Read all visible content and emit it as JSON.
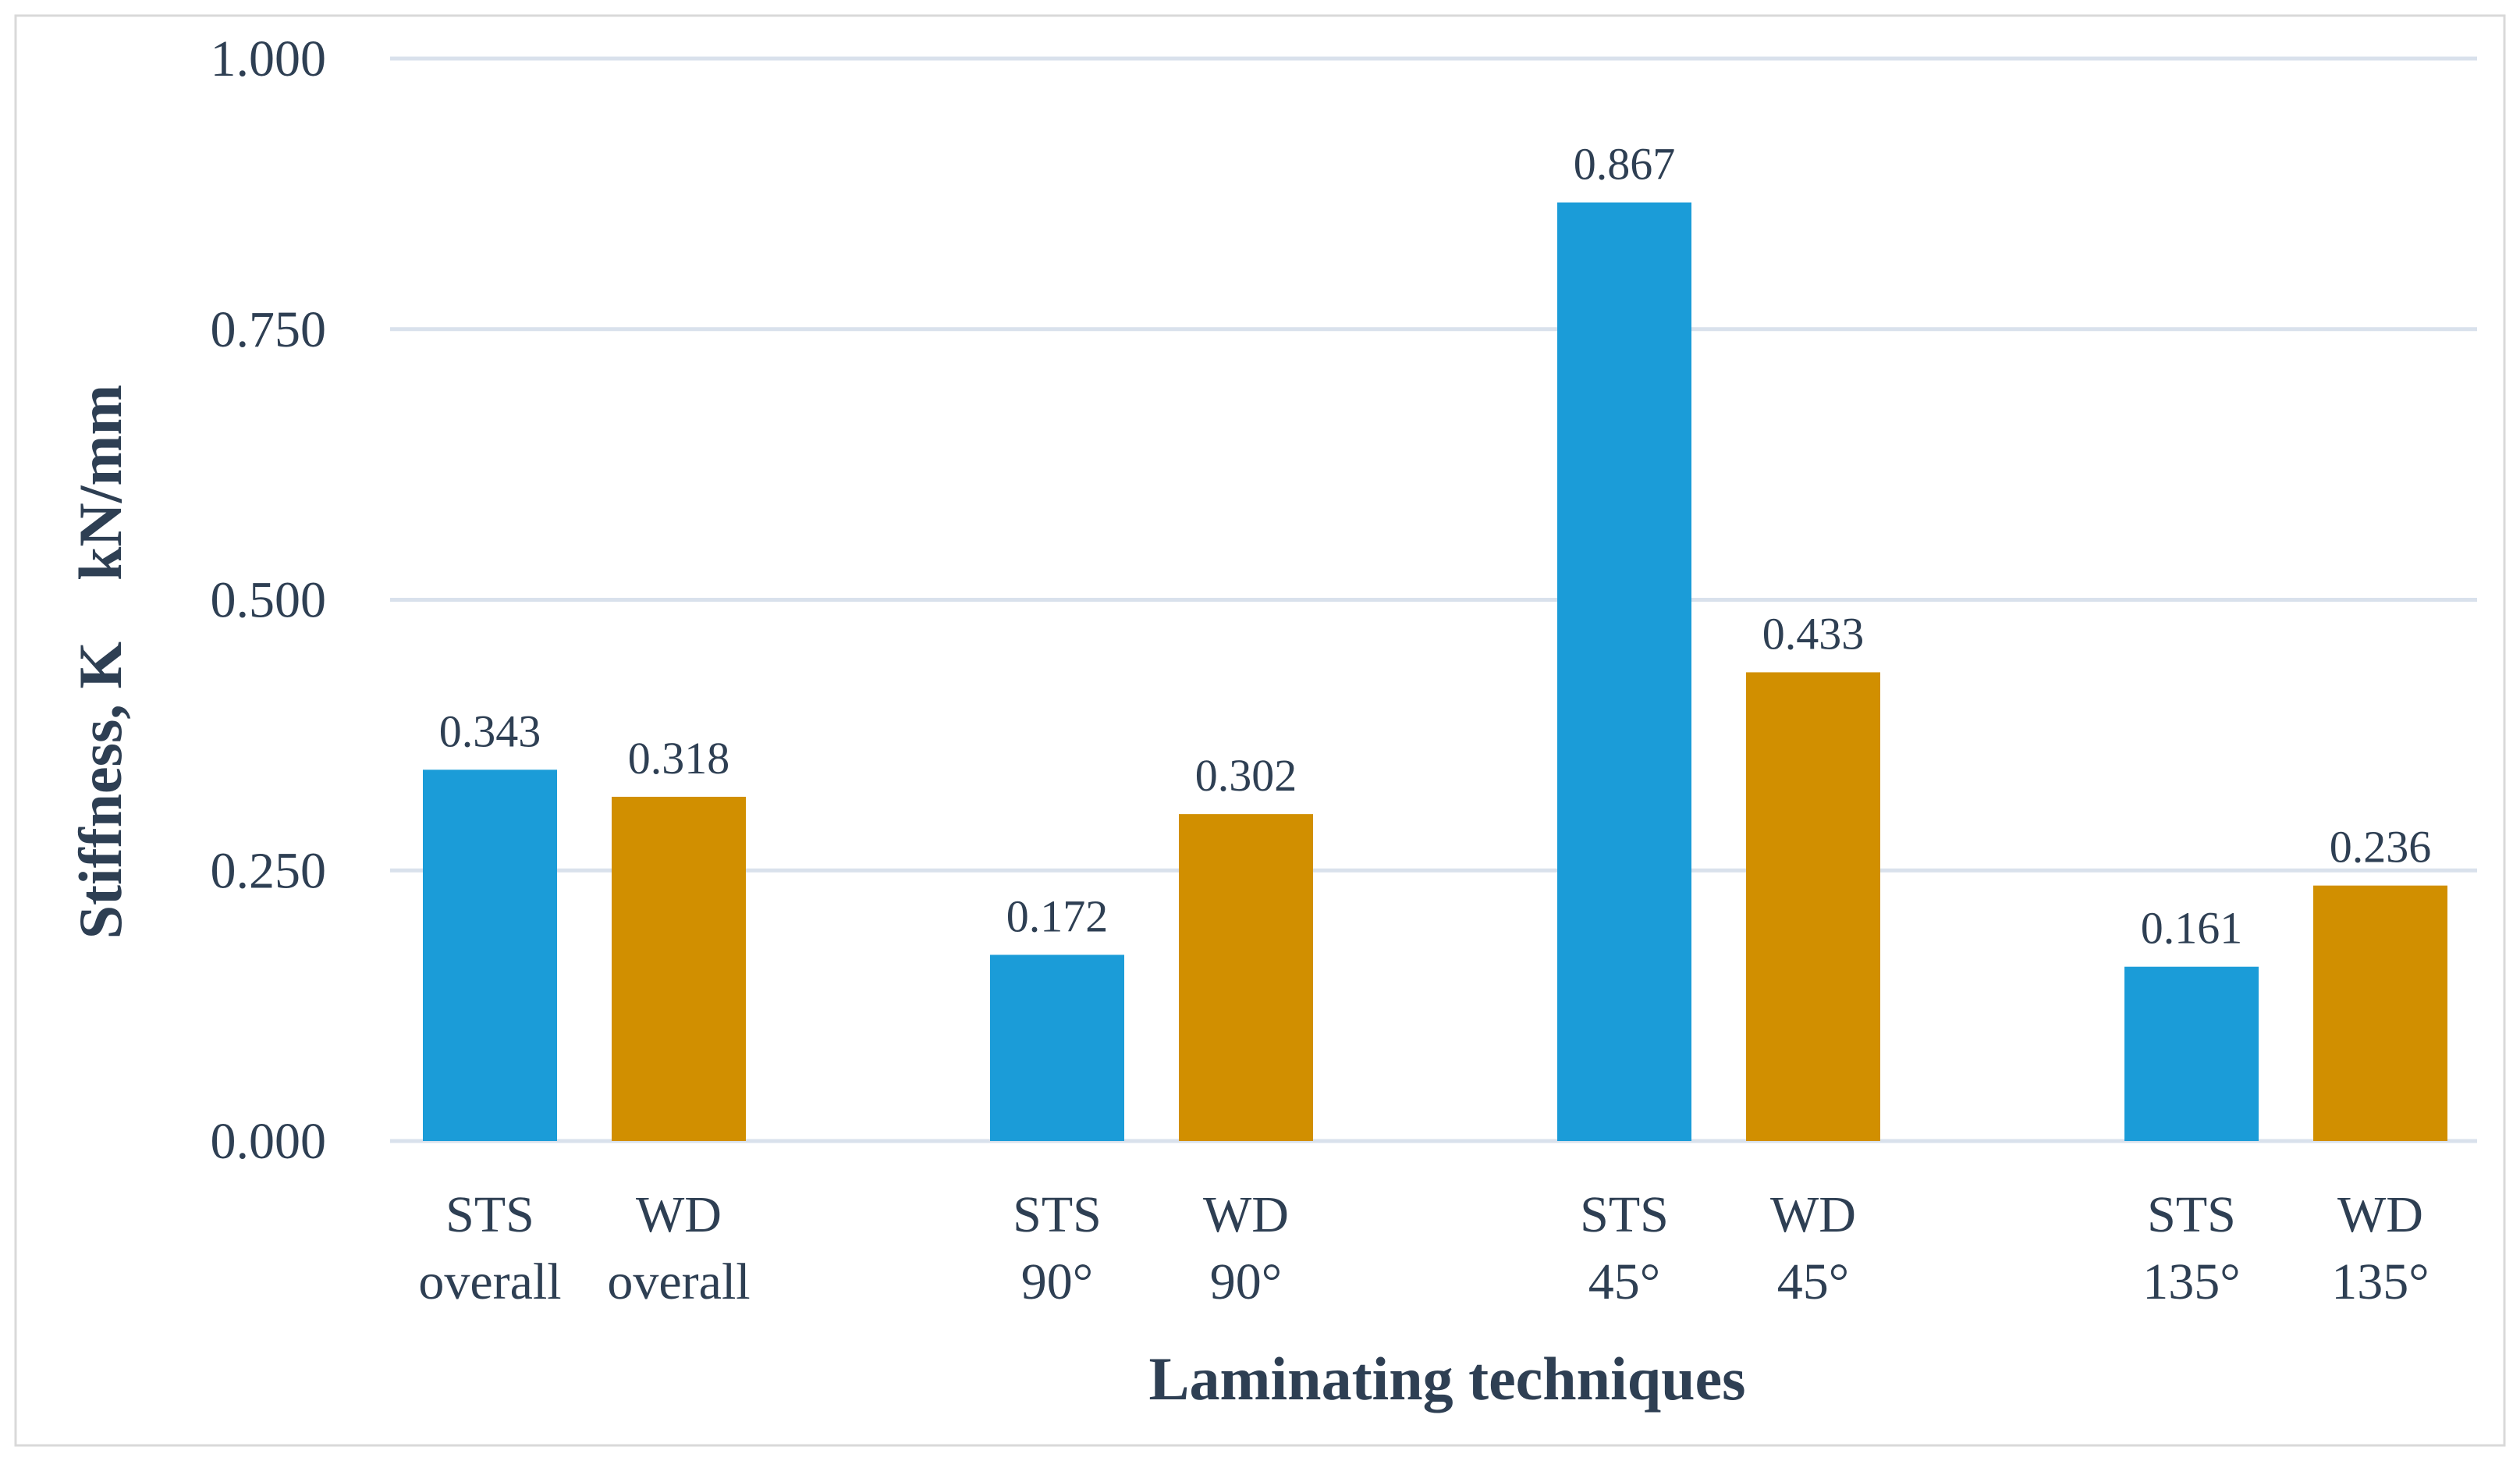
{
  "chart_data": {
    "type": "bar",
    "title": "",
    "xlabel": "Laminating techniques",
    "ylabel": "Stiffness, K    kN/mm",
    "ylim": [
      0,
      1.0
    ],
    "yticks": [
      "0.000",
      "0.250",
      "0.500",
      "0.750",
      "1.000"
    ],
    "ytick_values": [
      0,
      0.25,
      0.5,
      0.75,
      1.0
    ],
    "grid": true,
    "legend": "none",
    "groups": [
      "overall",
      "90°",
      "45°",
      "135°"
    ],
    "bars": [
      {
        "series": "STS",
        "group": 0,
        "label_top": "STS",
        "label_bottom": "overall",
        "value": 0.343,
        "value_label": "0.343"
      },
      {
        "series": "WD",
        "group": 0,
        "label_top": "WD",
        "label_bottom": "overall",
        "value": 0.318,
        "value_label": "0.318"
      },
      {
        "series": "STS",
        "group": 1,
        "label_top": "STS",
        "label_bottom": "90°",
        "value": 0.172,
        "value_label": "0.172"
      },
      {
        "series": "WD",
        "group": 1,
        "label_top": "WD",
        "label_bottom": "90°",
        "value": 0.302,
        "value_label": "0.302"
      },
      {
        "series": "STS",
        "group": 2,
        "label_top": "STS",
        "label_bottom": "45°",
        "value": 0.867,
        "value_label": "0.867"
      },
      {
        "series": "WD",
        "group": 2,
        "label_top": "WD",
        "label_bottom": "45°",
        "value": 0.433,
        "value_label": "0.433"
      },
      {
        "series": "STS",
        "group": 3,
        "label_top": "STS",
        "label_bottom": "135°",
        "value": 0.161,
        "value_label": "0.161"
      },
      {
        "series": "WD",
        "group": 3,
        "label_top": "WD",
        "label_bottom": "135°",
        "value": 0.236,
        "value_label": "0.236"
      }
    ],
    "colors": {
      "STS": "#1b9cd8",
      "WD": "#d18f00"
    }
  }
}
